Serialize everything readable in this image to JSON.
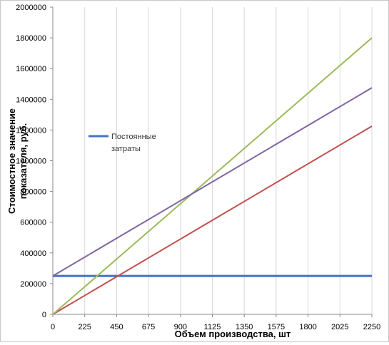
{
  "chart_data": {
    "type": "line",
    "title": "",
    "xlabel": "Объем производства, шт",
    "ylabel_lines": [
      "Стоимостное  значение",
      "показателя, руб."
    ],
    "xlim": [
      0,
      2250
    ],
    "ylim": [
      0,
      2000000
    ],
    "x_ticks": [
      "0",
      "225",
      "450",
      "675",
      "900",
      "1125",
      "1350",
      "1575",
      "1800",
      "2025",
      "2250"
    ],
    "y_ticks": [
      "0",
      "200000",
      "400000",
      "600000",
      "800000",
      "1000000",
      "1200000",
      "1400000",
      "1600000",
      "1800000",
      "2000000"
    ],
    "grid": "vertical",
    "legend_position": "left-middle",
    "series": [
      {
        "name": "Постоянные затраты",
        "color": "#4472c4",
        "x": [
          0,
          2250
        ],
        "y": [
          250000,
          250000
        ]
      },
      {
        "color": "#c0504d",
        "x": [
          0,
          2250
        ],
        "y": [
          0,
          1225000
        ]
      },
      {
        "color": "#9bbb59",
        "x": [
          0,
          2250
        ],
        "y": [
          0,
          1800000
        ]
      },
      {
        "color": "#8064a2",
        "x": [
          0,
          2250
        ],
        "y": [
          250000,
          1475000
        ]
      }
    ]
  }
}
